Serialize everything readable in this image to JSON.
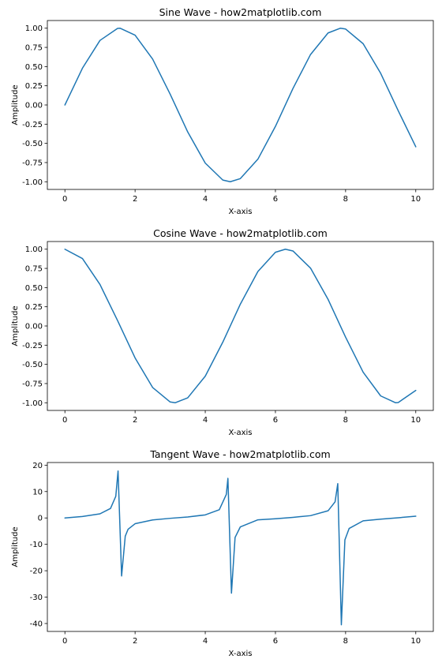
{
  "chart_data": [
    {
      "type": "line",
      "title": "Sine Wave - how2matplotlib.com",
      "xlabel": "X-axis",
      "ylabel": "Amplitude",
      "xlim": [
        -0.5,
        10.5
      ],
      "ylim": [
        -1.1,
        1.1
      ],
      "xticks": [
        0,
        2,
        4,
        6,
        8,
        10
      ],
      "yticks": [
        1.0,
        0.75,
        0.5,
        0.25,
        0.0,
        -0.25,
        -0.5,
        -0.75,
        -1.0
      ],
      "ytick_labels": [
        "1.00",
        "0.75",
        "0.50",
        "0.25",
        "0.00",
        "-0.25",
        "-0.50",
        "-0.75",
        "-1.00"
      ],
      "grid": false,
      "color": "#1f77b4",
      "x": [
        0,
        0.5,
        1,
        1.5,
        1.5708,
        2,
        2.5,
        3,
        3.5,
        4,
        4.5,
        4.7124,
        5,
        5.5,
        6,
        6.5,
        7,
        7.5,
        7.854,
        8,
        8.5,
        9,
        9.5,
        10
      ],
      "y": [
        0,
        0.479,
        0.841,
        0.997,
        1.0,
        0.909,
        0.598,
        0.141,
        -0.351,
        -0.757,
        -0.978,
        -1.0,
        -0.959,
        -0.706,
        -0.279,
        0.215,
        0.657,
        0.938,
        1.0,
        0.989,
        0.798,
        0.412,
        -0.075,
        -0.544
      ]
    },
    {
      "type": "line",
      "title": "Cosine Wave - how2matplotlib.com",
      "xlabel": "X-axis",
      "ylabel": "Amplitude",
      "xlim": [
        -0.5,
        10.5
      ],
      "ylim": [
        -1.1,
        1.1
      ],
      "xticks": [
        0,
        2,
        4,
        6,
        8,
        10
      ],
      "yticks": [
        1.0,
        0.75,
        0.5,
        0.25,
        0.0,
        -0.25,
        -0.5,
        -0.75,
        -1.0
      ],
      "ytick_labels": [
        "1.00",
        "0.75",
        "0.50",
        "0.25",
        "0.00",
        "-0.25",
        "-0.50",
        "-0.75",
        "-1.00"
      ],
      "grid": false,
      "color": "#1f77b4",
      "x": [
        0,
        0.5,
        1,
        1.5,
        2,
        2.5,
        3,
        3.1416,
        3.5,
        4,
        4.5,
        5,
        5.5,
        6,
        6.2832,
        6.5,
        7,
        7.5,
        8,
        8.5,
        9,
        9.4248,
        9.5,
        10
      ],
      "y": [
        1.0,
        0.878,
        0.54,
        0.071,
        -0.416,
        -0.801,
        -0.99,
        -1.0,
        -0.936,
        -0.654,
        -0.211,
        0.284,
        0.709,
        0.96,
        1.0,
        0.977,
        0.754,
        0.347,
        -0.146,
        -0.602,
        -0.911,
        -1.0,
        -0.997,
        -0.839
      ]
    },
    {
      "type": "line",
      "title": "Tangent Wave - how2matplotlib.com",
      "xlabel": "X-axis",
      "ylabel": "Amplitude",
      "xlim": [
        -0.5,
        10.5
      ],
      "ylim": [
        -43,
        21
      ],
      "xticks": [
        0,
        2,
        4,
        6,
        8,
        10
      ],
      "yticks": [
        20,
        10,
        0,
        -10,
        -20,
        -30,
        -40
      ],
      "ytick_labels": [
        "20",
        "10",
        "0",
        "-10",
        "-20",
        "-30",
        "-40"
      ],
      "grid": false,
      "color": "#1f77b4",
      "x": [
        0,
        0.5,
        1,
        1.3,
        1.45,
        1.515,
        1.616,
        1.72,
        1.8,
        2,
        2.5,
        3,
        3.5,
        4,
        4.4,
        4.6,
        4.646,
        4.747,
        4.85,
        5,
        5.5,
        6,
        6.5,
        7,
        7.5,
        7.7,
        7.777,
        7.879,
        7.98,
        8.1,
        8.5,
        9,
        9.5,
        10
      ],
      "y": [
        0,
        0.55,
        1.56,
        3.6,
        8.2,
        17.8,
        -22.0,
        -6.9,
        -4.3,
        -2.19,
        -0.75,
        -0.14,
        0.37,
        1.16,
        3.1,
        8.9,
        15.0,
        -28.5,
        -7.4,
        -3.38,
        -0.71,
        -0.29,
        0.22,
        0.87,
        2.71,
        6.1,
        13.0,
        -40.5,
        -8.3,
        -4.0,
        -1.1,
        -0.45,
        0.07,
        0.65
      ]
    }
  ]
}
